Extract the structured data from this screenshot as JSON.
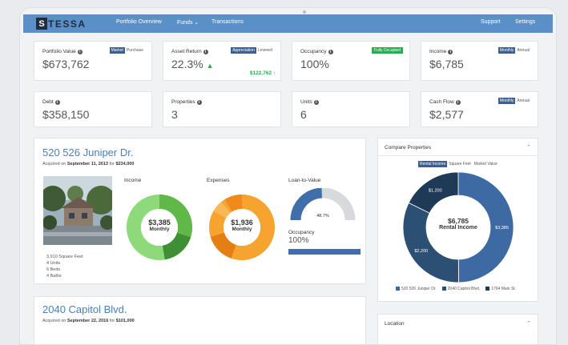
{
  "app": {
    "logo_letter": "S",
    "logo_word": "TESSA"
  },
  "nav": {
    "links": [
      "Portfolio Overview",
      "Funds",
      "Transactions"
    ],
    "funds_caret": "⌄",
    "right_links": [
      "Support",
      "Settings"
    ]
  },
  "stats": {
    "portfolio_value": {
      "label": "Portfolio Value",
      "value": "$673,762",
      "toggle_on": "Market",
      "toggle_off": "Purchase"
    },
    "asset_return": {
      "label": "Asset Return",
      "value": "22.3%",
      "arrow": "▲",
      "toggle_on": "Appreciation",
      "toggle_off": "Levered",
      "sub_value": "$122,762 ↑"
    },
    "occupancy": {
      "label": "Occupancy",
      "value": "100%",
      "badge": "Fully Occupied"
    },
    "income": {
      "label": "Income",
      "value": "$6,785",
      "toggle_on": "Monthly",
      "toggle_off": "Annual"
    },
    "debt": {
      "label": "Debt",
      "value": "$358,150"
    },
    "properties": {
      "label": "Properties",
      "value": "3"
    },
    "units": {
      "label": "Units",
      "value": "6"
    },
    "cash_flow": {
      "label": "Cash Flow",
      "value": "$2,577",
      "toggle_on": "Monthly",
      "toggle_off": "Annual"
    }
  },
  "property1": {
    "title": "520 526 Juniper Dr.",
    "acq_prefix": "Acquired on",
    "acq_date": "September 11, 2013",
    "acq_mid": "for",
    "acq_price": "$234,000",
    "details": [
      "3,910 Square Feet",
      "4 Units",
      "6 Beds",
      "4 Baths"
    ],
    "income": {
      "title": "Income",
      "amount": "$3,385",
      "period": "Monthly"
    },
    "expenses": {
      "title": "Expenses",
      "amount": "$1,936",
      "period": "Monthly"
    },
    "ltv": {
      "title": "Loan-to-Value",
      "value": "48.7%",
      "fraction": 0.487
    },
    "occupancy": {
      "title": "Occupancy",
      "value": "100%",
      "fraction": 1.0
    }
  },
  "property2": {
    "title": "2040 Capitol Blvd.",
    "acq_prefix": "Acquired on",
    "acq_date": "September 22, 2016",
    "acq_mid": "for",
    "acq_price": "$101,000"
  },
  "compare": {
    "title": "Compare Properties",
    "tabs": [
      "Rental Income",
      "Square Feet",
      "Market Value"
    ],
    "center_amount": "$6,785",
    "center_label": "Rental Income",
    "chart_data": {
      "type": "pie",
      "categories": [
        "520 526 Juniper Dr.",
        "2040 Capitol Blvd.",
        "1764 Main St."
      ],
      "values": [
        3385,
        2200,
        1200
      ],
      "labels": [
        "$3,385",
        "$2,200",
        "$1,200"
      ],
      "colors": [
        "#3e6aa3",
        "#2c4f74",
        "#1e3a57"
      ]
    }
  },
  "location": {
    "title": "Location"
  },
  "colors": {
    "nav": "#5a8fc7",
    "accent": "#4b7fb8",
    "green": "#2fa84f",
    "orange": "#f6a42f"
  }
}
